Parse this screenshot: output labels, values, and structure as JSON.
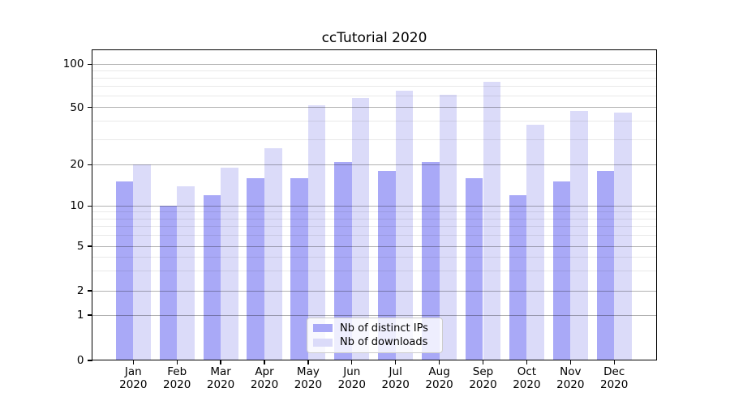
{
  "chart_data": {
    "type": "bar",
    "title": "ccTutorial 2020",
    "categories": [
      "Jan",
      "Feb",
      "Mar",
      "Apr",
      "May",
      "Jun",
      "Jul",
      "Aug",
      "Sep",
      "Oct",
      "Nov",
      "Dec"
    ],
    "x_label_second_line": "2020",
    "series": [
      {
        "name": "Nb of distinct IPs",
        "color": "#a9a9f7",
        "values": [
          15,
          10,
          12,
          16,
          16,
          21,
          18,
          21,
          16,
          12,
          15,
          18
        ]
      },
      {
        "name": "Nb of downloads",
        "color": "#dbdbf9",
        "values": [
          20,
          14,
          19,
          26,
          52,
          58,
          65,
          61,
          75,
          38,
          47,
          46
        ]
      }
    ],
    "yscale": "symlog",
    "y_major_ticks": [
      0,
      1,
      2,
      5,
      10,
      20,
      50,
      100
    ],
    "y_minor_gridlines": [
      3,
      4,
      6,
      7,
      8,
      9,
      30,
      40,
      60,
      70,
      80,
      90
    ],
    "ylim_top_value": 140,
    "grid": true,
    "legend_position": "lower center",
    "colors": {
      "background": "#ffffff",
      "axis": "#000000",
      "grid_major": "#b0b0b0",
      "grid_minor": "#e9e9e9",
      "legend_border": "#cccccc"
    }
  }
}
